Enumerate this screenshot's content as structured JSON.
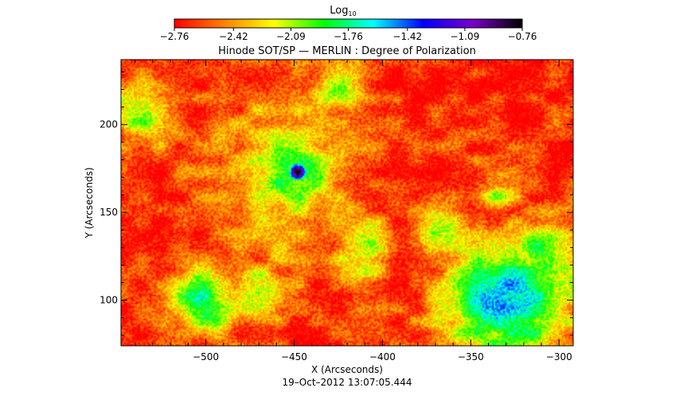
{
  "chart_data": {
    "type": "heatmap",
    "title": "Hinode SOT/SP — MERLIN : Degree of Polarization",
    "timestamp": "19–Oct–2012 13:07:05.444",
    "xlabel": "X (Arcseconds)",
    "ylabel": "Y (Arcseconds)",
    "xlim": [
      -548,
      -292
    ],
    "ylim": [
      74,
      237
    ],
    "xticks": [
      -500,
      -450,
      -400,
      -350,
      -300
    ],
    "yticks": [
      100,
      150,
      200
    ],
    "xtick_labels": [
      "−500",
      "−450",
      "−400",
      "−350",
      "−300"
    ],
    "ytick_labels": [
      "100",
      "150",
      "200"
    ],
    "colorbar": {
      "label_base": "Log",
      "label_sub": "10",
      "min": -2.76,
      "max": -0.76,
      "ticks": [
        -2.76,
        -2.42,
        -2.09,
        -1.76,
        -1.42,
        -1.09,
        -0.76
      ],
      "tick_labels": [
        "−2.76",
        "−2.42",
        "−2.09",
        "−1.76",
        "−1.42",
        "−1.09",
        "−0.76"
      ],
      "colormap": [
        "#ff0000",
        "#ff8000",
        "#ffff00",
        "#00ff00",
        "#00ffff",
        "#0000ff",
        "#7a00c8",
        "#000000"
      ]
    },
    "features": [
      {
        "x": -448,
        "y": 173,
        "radius": 7,
        "value": -0.76
      },
      {
        "x": -450,
        "y": 172,
        "radius": 30,
        "value": -1.9
      },
      {
        "x": -455,
        "y": 168,
        "radius": 55,
        "value": -2.2
      },
      {
        "x": -330,
        "y": 100,
        "radius": 45,
        "value": -1.6
      },
      {
        "x": -310,
        "y": 125,
        "radius": 25,
        "value": -1.9
      },
      {
        "x": -500,
        "y": 100,
        "radius": 25,
        "value": -1.9
      },
      {
        "x": -470,
        "y": 105,
        "radius": 20,
        "value": -2.0
      },
      {
        "x": -410,
        "y": 130,
        "radius": 20,
        "value": -2.0
      },
      {
        "x": -370,
        "y": 140,
        "radius": 18,
        "value": -2.1
      },
      {
        "x": -535,
        "y": 205,
        "radius": 22,
        "value": -2.1
      },
      {
        "x": -425,
        "y": 220,
        "radius": 18,
        "value": -2.1
      },
      {
        "x": -335,
        "y": 160,
        "radius": 15,
        "value": -2.2
      }
    ],
    "background_value": -2.72
  }
}
